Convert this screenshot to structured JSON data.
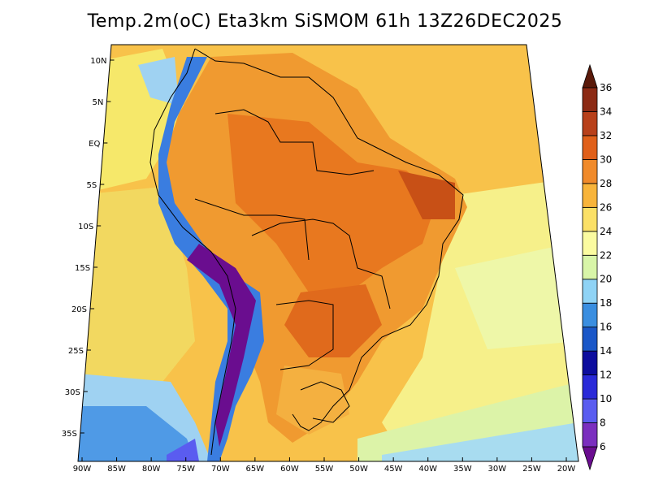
{
  "title": "Temp.2m(oC) Eta3km SiSMOM 61h 13Z26DEC2025",
  "map": {
    "lon_labels": [
      "90W",
      "85W",
      "80W",
      "75W",
      "70W",
      "65W",
      "60W",
      "55W",
      "50W",
      "45W",
      "40W",
      "35W",
      "30W",
      "25W",
      "20W"
    ],
    "lat_labels": [
      "10N",
      "5N",
      "EQ",
      "5S",
      "10S",
      "15S",
      "20S",
      "25S",
      "30S",
      "35S"
    ],
    "variable": "2 m air temperature",
    "units": "oC"
  },
  "colorbar": {
    "labels": [
      "6",
      "8",
      "10",
      "12",
      "14",
      "16",
      "18",
      "20",
      "22",
      "24",
      "26",
      "28",
      "30",
      "32",
      "34",
      "36"
    ],
    "colors": [
      "#6a0d8f",
      "#7b2fbf",
      "#5a5cf0",
      "#2a2ad8",
      "#0d0d9e",
      "#1a57c8",
      "#3a8ee0",
      "#8fd3f5",
      "#d8f5a8",
      "#fbfba0",
      "#fbe066",
      "#f8b43a",
      "#f08a2a",
      "#e0601a",
      "#b8401a",
      "#8c2a14",
      "#5a1a0a"
    ]
  }
}
